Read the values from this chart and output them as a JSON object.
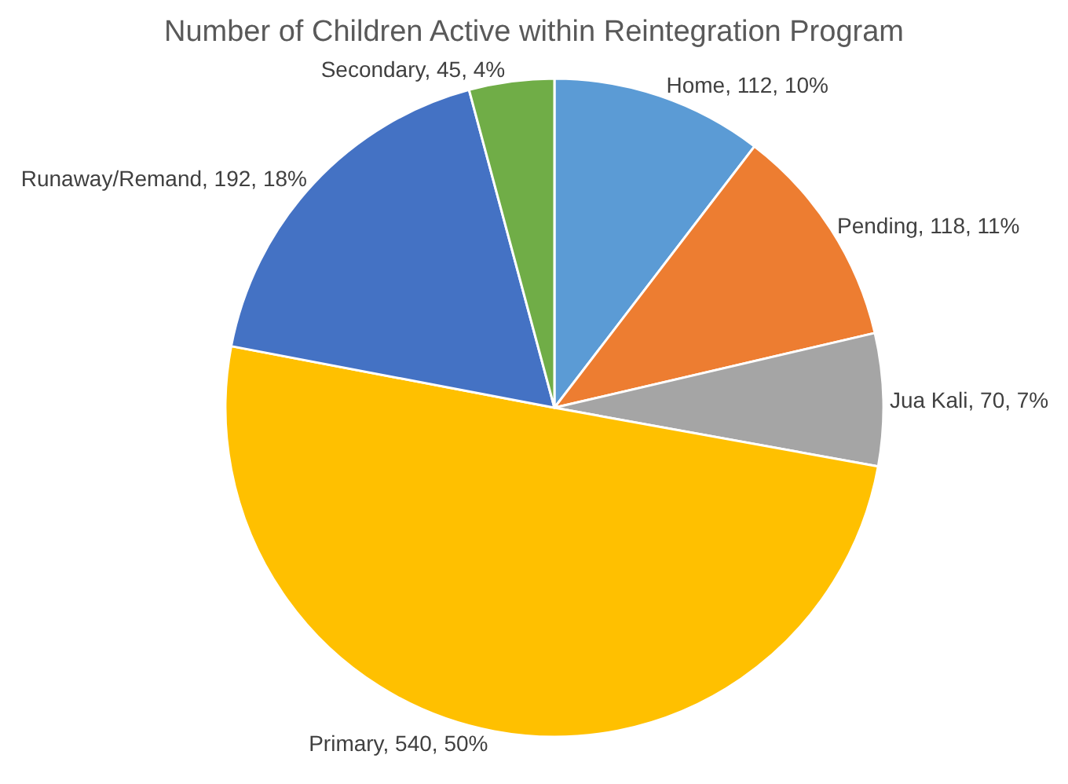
{
  "chart_data": {
    "type": "pie",
    "title": "Number of Children Active within Reintegration Program",
    "categories": [
      "Home",
      "Pending",
      "Jua Kali",
      "Primary",
      "Runaway/Remand",
      "Secondary"
    ],
    "values": [
      112,
      118,
      70,
      540,
      192,
      45
    ],
    "value_labels": [
      "112, 10%",
      "118, 11%",
      "70, 7%",
      "540, 50%",
      "192, 18%",
      "45, 4%"
    ],
    "colors": [
      "#5b9bd5",
      "#ed7d31",
      "#a5a5a5",
      "#ffc000",
      "#4472c4",
      "#70ad47"
    ],
    "legend": false
  }
}
